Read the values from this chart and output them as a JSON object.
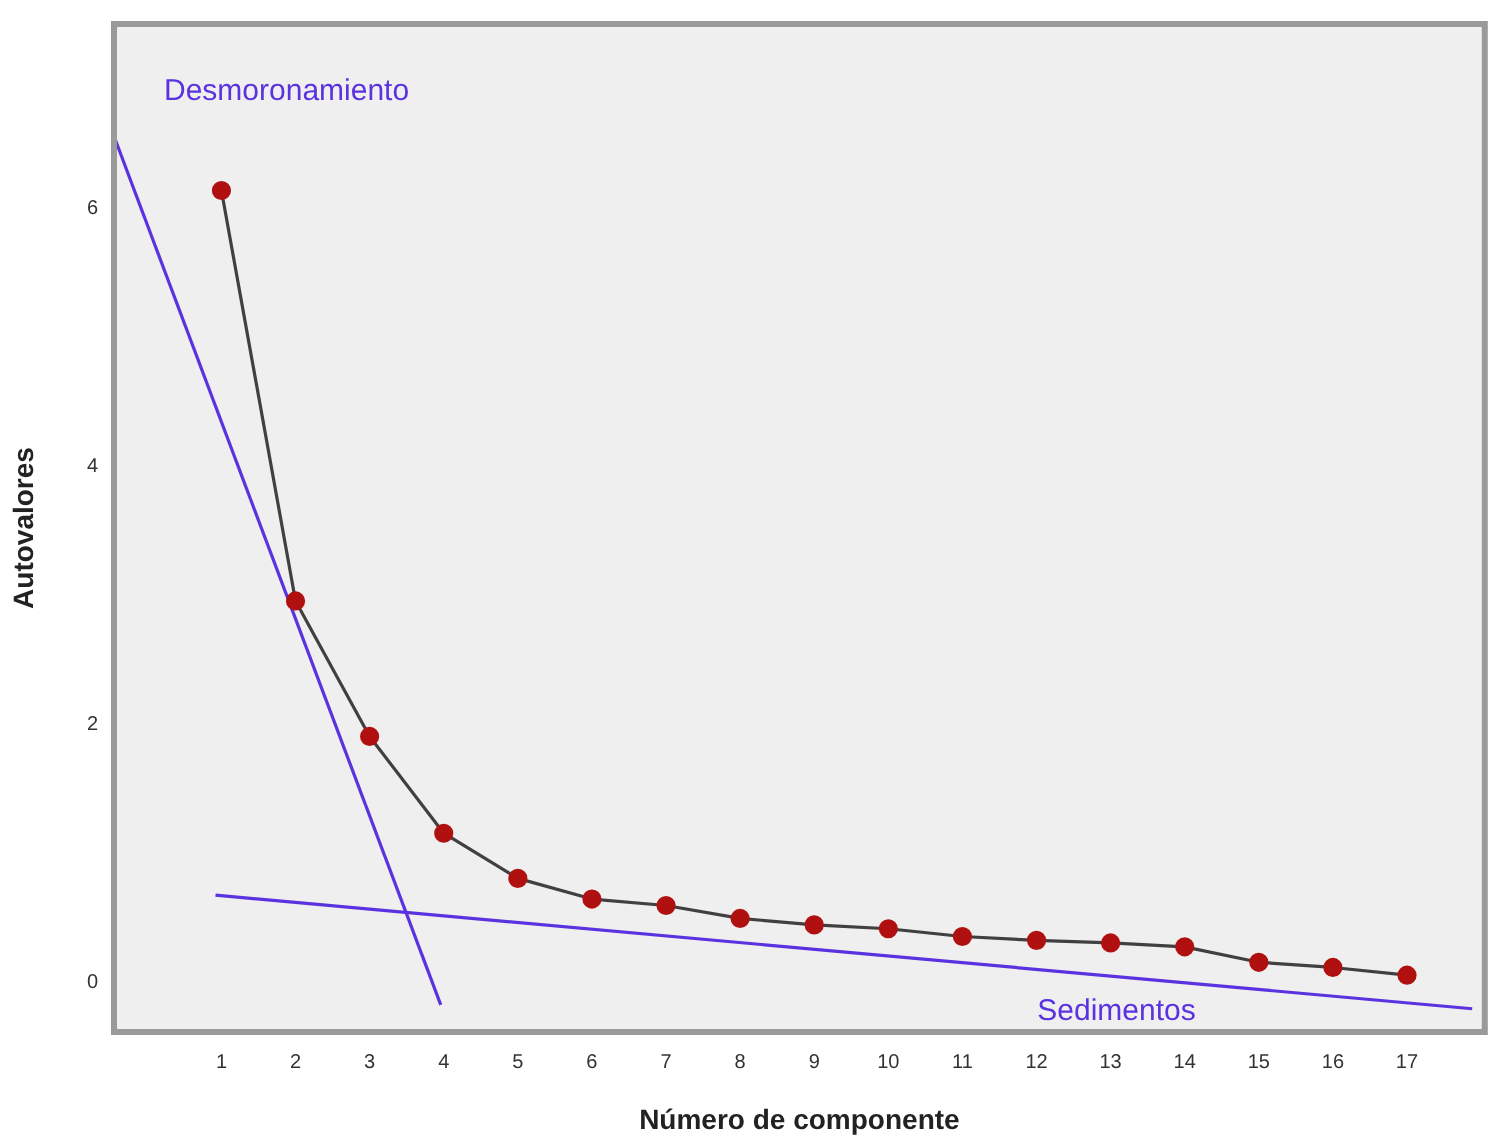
{
  "chart_data": {
    "type": "line",
    "xlabel": "Número de componente",
    "ylabel": "Autovalores",
    "xlim": [
      -0.45,
      18.05
    ],
    "ylim": [
      -0.38,
      7.43
    ],
    "xticks": [
      1,
      2,
      3,
      4,
      5,
      6,
      7,
      8,
      9,
      10,
      11,
      12,
      13,
      14,
      15,
      16,
      17
    ],
    "yticks": [
      0,
      2,
      4,
      6
    ],
    "grid": false,
    "legend": false,
    "series": [
      {
        "color": "#404040",
        "marker": "circle",
        "colors": [
          "#b01010",
          "#b01010",
          "#b01010",
          "#b01010",
          "#b01010",
          "#b01010",
          "#b01010",
          "#b01010",
          "#b01010",
          "#b01010",
          "#b01010",
          "#b01010",
          "#b01010",
          "#b01010",
          "#b01010",
          "#b01010",
          "#b01010"
        ],
        "x": [
          1,
          2,
          3,
          4,
          5,
          6,
          7,
          8,
          9,
          10,
          11,
          12,
          13,
          14,
          15,
          16,
          17
        ],
        "values": [
          6.14,
          2.96,
          1.91,
          1.16,
          0.81,
          0.65,
          0.6,
          0.5,
          0.45,
          0.42,
          0.36,
          0.33,
          0.31,
          0.28,
          0.16,
          0.12,
          0.06
        ]
      },
      {
        "type": "line",
        "name": "Desmoronamiento",
        "color": "#5a32e0",
        "marker": "none",
        "x": [
          -0.45,
          3.96
        ],
        "values": [
          6.56,
          -0.17
        ]
      },
      {
        "type": "line",
        "name": "Sedimentos",
        "color": "#5a32e0",
        "marker": "none",
        "x": [
          0.92,
          17.88
        ],
        "values": [
          0.68,
          -0.2
        ]
      }
    ]
  }
}
